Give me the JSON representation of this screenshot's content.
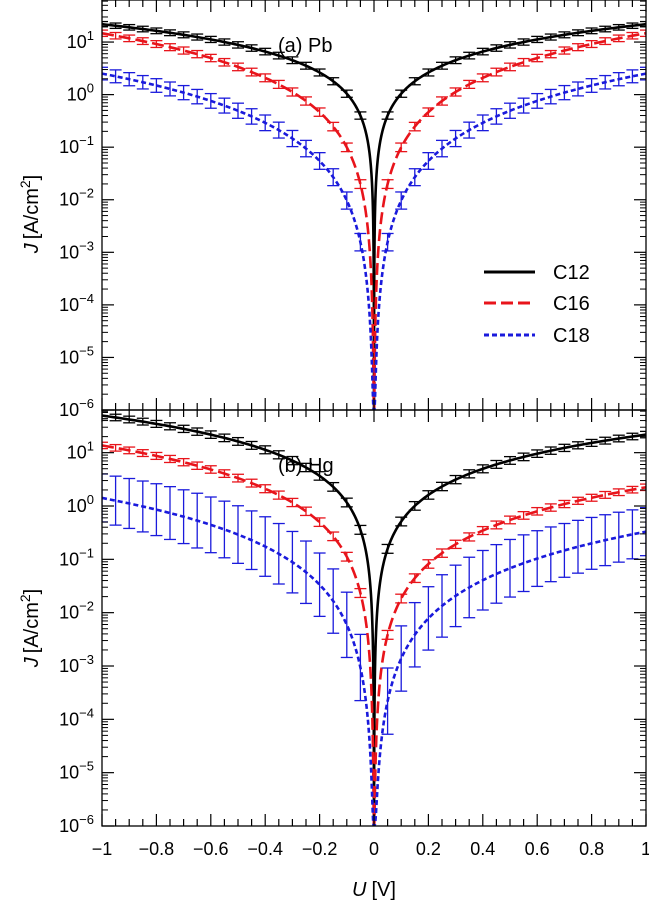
{
  "chart_data": [
    {
      "type": "line",
      "panel_label": "(a) Pb",
      "ylabel": "J [A/cm2]",
      "xlabel": "",
      "xlim": [
        -1,
        1
      ],
      "ylim_log10": [
        -6,
        1.8
      ],
      "log_y": true,
      "grid": false,
      "legend_position": "right-middle",
      "series": [
        {
          "name": "C12",
          "color": "#000000",
          "dash": "solid",
          "u0": 0.006,
          "A": 22,
          "p": 1.3,
          "err": 0.05
        },
        {
          "name": "C16",
          "color": "#e8141b",
          "dash": "long-dash",
          "u0": 0.02,
          "A": 15,
          "p": 2.1,
          "err": 0.06
        },
        {
          "name": "C18",
          "color": "#1a1adc",
          "dash": "short-dash",
          "u0": 0.035,
          "A": 2.6,
          "p": 2.3,
          "err": 0.12
        }
      ]
    },
    {
      "type": "line",
      "panel_label": "(b) Hg",
      "ylabel": "J [A/cm2]",
      "xlabel": "U [V]",
      "xlim": [
        -1,
        1
      ],
      "ylim_log10": [
        -6,
        1.8
      ],
      "log_y": true,
      "grid": false,
      "series": [
        {
          "name": "C12",
          "color": "#000000",
          "dash": "solid",
          "u0": 0.008,
          "A": 50,
          "A_pos": 22,
          "p": 1.6,
          "err": 0.06
        },
        {
          "name": "C16",
          "color": "#e8141b",
          "dash": "long-dash",
          "u0": 0.025,
          "A": 14,
          "A_pos": 2.3,
          "p": 2.0,
          "err": 0.06
        },
        {
          "name": "C18",
          "color": "#1a1adc",
          "dash": "short-dash",
          "u0": 0.06,
          "A": 1.5,
          "A_pos": 0.35,
          "p": 2.2,
          "err": 0.45
        }
      ]
    }
  ],
  "axes": {
    "ylabel_main": "J",
    "ylabel_unit_prefix": "[A/cm",
    "ylabel_unit_exp": "2",
    "ylabel_unit_suffix": "]",
    "xlabel_main": "U",
    "xlabel_unit": "[V]",
    "xticks": [
      "−1",
      "−0.8",
      "−0.6",
      "−0.4",
      "−0.2",
      "0",
      "0.2",
      "0.4",
      "0.6",
      "0.8",
      "1"
    ],
    "ytick_base": "10",
    "ytick_exponents": [
      "1",
      "0",
      "−1",
      "−2",
      "−3",
      "−4",
      "−5",
      "−6"
    ]
  },
  "legend": [
    "C12",
    "C16",
    "C18"
  ]
}
